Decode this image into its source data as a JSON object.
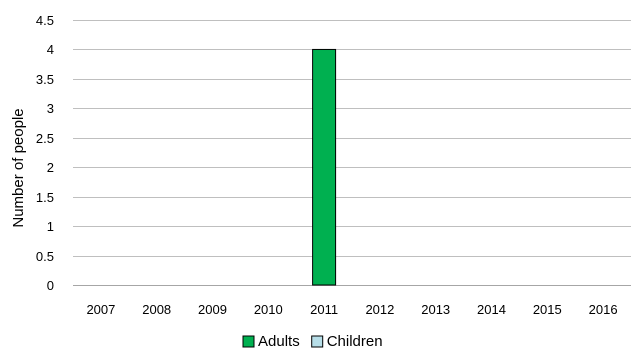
{
  "chart_data": {
    "type": "bar",
    "title": "",
    "xlabel": "",
    "ylabel": "Number of people",
    "ylim": [
      0,
      4.5
    ],
    "yticks": [
      "0",
      "0.5",
      "1",
      "1.5",
      "2",
      "2.5",
      "3",
      "3.5",
      "4",
      "4.5"
    ],
    "categories": [
      "2007",
      "2008",
      "2009",
      "2010",
      "2011",
      "2012",
      "2013",
      "2014",
      "2015",
      "2016"
    ],
    "series": [
      {
        "name": "Adults",
        "color": "#00b050",
        "values": [
          0,
          0,
          0,
          0,
          4,
          0,
          0,
          0,
          0,
          0
        ]
      },
      {
        "name": "Children",
        "color": "#b7dee8",
        "values": [
          0,
          0,
          0,
          0,
          0,
          0,
          0,
          0,
          0,
          0
        ]
      }
    ],
    "grid": true,
    "legend_position": "bottom"
  }
}
